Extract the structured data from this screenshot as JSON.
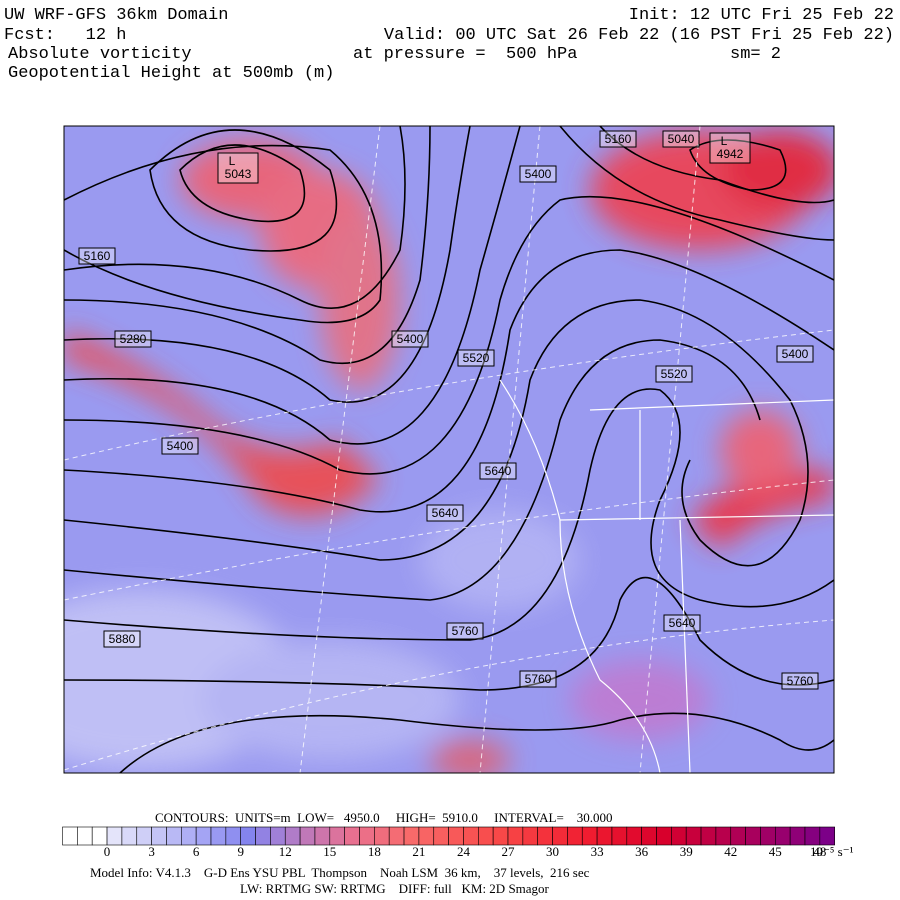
{
  "header": {
    "title": "UW WRF-GFS 36km Domain",
    "forecast": "Fcst:   12 h",
    "field1": "Absolute vorticity",
    "field2": "Geopotential Height at 500mb (m)",
    "init": "Init: 12 UTC Fri 25 Feb 22",
    "valid": "Valid: 00 UTC Sat 26 Feb 22 (16 PST Fri 25 Feb 22)",
    "pressure": "at pressure =  500 hPa",
    "smoothing": "sm= 2"
  },
  "map": {
    "lows": [
      {
        "symbol": "L",
        "value": 5043
      },
      {
        "symbol": "L",
        "value": 4942
      }
    ],
    "contour_labels": [
      5160,
      5040,
      5400,
      5160,
      5280,
      5400,
      5520,
      5400,
      5520,
      5400,
      5640,
      5640,
      5880,
      5760,
      5760,
      5640,
      5760
    ]
  },
  "footer": {
    "contours": "CONTOURS:  UNITS=m  LOW=   4950.0     HIGH=  5910.0     INTERVAL=    30.000",
    "colorbar_labels": [
      0,
      3,
      6,
      9,
      12,
      15,
      18,
      21,
      24,
      27,
      30,
      33,
      36,
      39,
      42,
      45,
      48
    ],
    "colorbar_unit": "10⁻⁵ s⁻¹",
    "model_info": "Model Info: V4.1.3    G-D Ens YSU PBL  Thompson    Noah LSM  36 km,    37 levels,  216 sec",
    "physics": "LW: RRTMG SW: RRTMG    DIFF: full   KM: 2D Smagor"
  }
}
